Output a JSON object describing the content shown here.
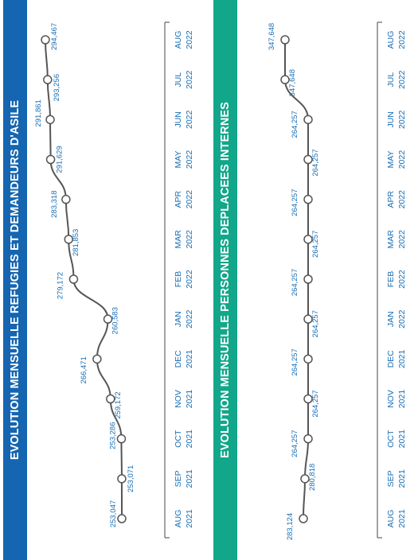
{
  "colors": {
    "banner1": "#1565b0",
    "banner2": "#12a68a",
    "line": "#555555",
    "label": "#1a6fb5"
  },
  "banner1": {
    "title": "EVOLUTION MENSUELLE REFUGIES ET DEMANDEURS D'ASILE"
  },
  "banner2": {
    "title": "EVOLUTION MENSUELLE PERSONNES DEPLACEES INTERNES"
  },
  "chart_data": [
    {
      "type": "line",
      "title": "EVOLUTION MENSUELLE REFUGIES ET DEMANDEURS D'ASILE",
      "categories": [
        "AUG 2021",
        "SEP 2021",
        "OCT 2021",
        "NOV 2021",
        "DEC 2021",
        "JAN 2022",
        "FEB 2022",
        "MAR 2022",
        "APR 2022",
        "MAY 2022",
        "JUN 2022",
        "JUL 2022",
        "AUG 2022"
      ],
      "values": [
        253047,
        253071,
        253286,
        259172,
        266471,
        260583,
        279172,
        281853,
        283318,
        291629,
        291861,
        293256,
        294467
      ],
      "labels": [
        "253,047",
        "253,071",
        "253,286",
        "259,172",
        "266,471",
        "260,583",
        "279,172",
        "281,853",
        "283,318",
        "291,629",
        "291,861",
        "293,256",
        "294,467"
      ],
      "ylim": [
        250000,
        300000
      ]
    },
    {
      "type": "line",
      "title": "EVOLUTION MENSUELLE PERSONNES DEPLACEES INTERNES",
      "categories": [
        "AUG 2021",
        "SEP 2021",
        "OCT 2021",
        "NOV 2021",
        "DEC 2021",
        "JAN 2022",
        "FEB 2022",
        "MAR 2022",
        "APR 2022",
        "MAY 2022",
        "JUN 2022",
        "JUL 2022",
        "AUG 2022"
      ],
      "values": [
        283124,
        280818,
        264257,
        264257,
        264257,
        264257,
        264257,
        264257,
        264257,
        264257,
        264257,
        347648,
        347648
      ],
      "labels": [
        "283,124",
        "280,818",
        "264,257",
        "264,257",
        "264,257",
        "264,257",
        "264,257",
        "264,257",
        "264,257",
        "264,257",
        "264,257",
        "347,648",
        "347,648"
      ]
    }
  ]
}
